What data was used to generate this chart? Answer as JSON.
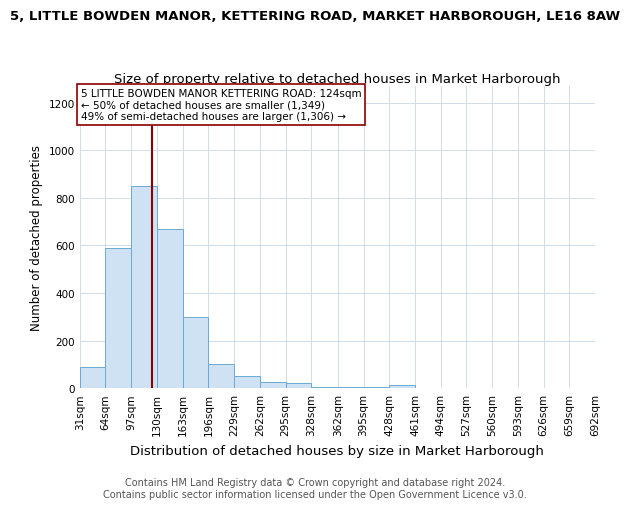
{
  "title": "5, LITTLE BOWDEN MANOR, KETTERING ROAD, MARKET HARBOROUGH, LE16 8AW",
  "subtitle": "Size of property relative to detached houses in Market Harborough",
  "xlabel": "Distribution of detached houses by size in Market Harborough",
  "ylabel": "Number of detached properties",
  "bin_edges": [
    31,
    64,
    97,
    130,
    163,
    196,
    229,
    262,
    295,
    328,
    362,
    395,
    428,
    461,
    494,
    527,
    560,
    593,
    626,
    659,
    692
  ],
  "bar_heights": [
    90,
    590,
    850,
    670,
    300,
    100,
    50,
    25,
    20,
    5,
    5,
    5,
    15,
    2,
    0,
    0,
    0,
    0,
    0,
    0
  ],
  "bar_color": "#cfe2f3",
  "bar_edge_color": "#6aaad4",
  "property_size": 124,
  "property_line_color": "#8b0000",
  "annotation_text": "5 LITTLE BOWDEN MANOR KETTERING ROAD: 124sqm\n← 50% of detached houses are smaller (1,349)\n49% of semi-detached houses are larger (1,306) →",
  "annotation_box_color": "white",
  "annotation_box_edge_color": "#8b0000",
  "ylim": [
    0,
    1270
  ],
  "footnote1": "Contains HM Land Registry data © Crown copyright and database right 2024.",
  "footnote2": "Contains public sector information licensed under the Open Government Licence v3.0.",
  "title_fontsize": 9.5,
  "subtitle_fontsize": 9.5,
  "xlabel_fontsize": 9.5,
  "ylabel_fontsize": 8.5,
  "tick_fontsize": 7.5,
  "annot_fontsize": 7.5,
  "footnote_fontsize": 7,
  "background_color": "#ffffff",
  "grid_color": "#d0dde8"
}
